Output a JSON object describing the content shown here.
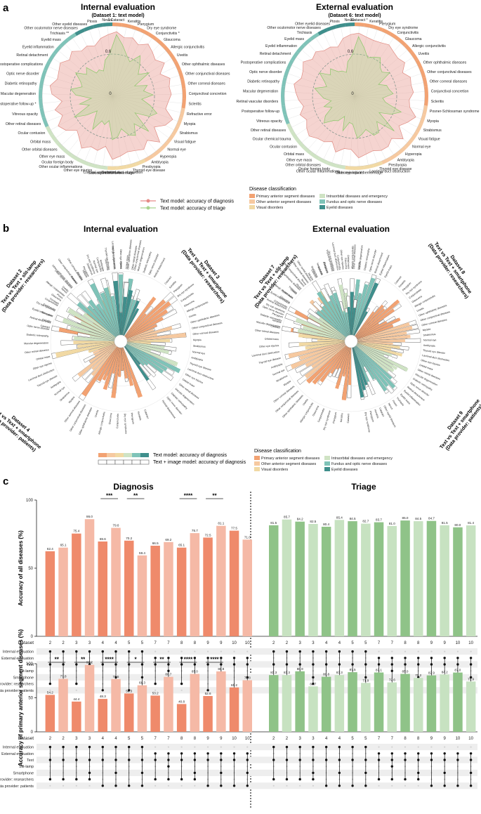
{
  "panels": {
    "a": "a",
    "b": "b",
    "c": "c"
  },
  "panel_a": {
    "internal": {
      "title": "Internal evaluation",
      "subtitle": "(Dataset 1: text model)"
    },
    "external": {
      "title": "External evaluation",
      "subtitle": "(Dataset 6: text model)"
    },
    "legend": {
      "diagnosis": "Text model: accuracy of diagnosis",
      "triage": "Text model: accuracy of triage"
    },
    "radial_ticks": [
      "0",
      "0.6",
      "1"
    ]
  },
  "disease_classification": {
    "title": "Disease classification",
    "items": [
      {
        "label": "Primary anterior segment diseases",
        "color": "#f2a272"
      },
      {
        "label": "Other anterior segment diseases",
        "color": "#f6c9a0"
      },
      {
        "label": "Visual disorders",
        "color": "#f1d9a4"
      },
      {
        "label": "Intraorbital diseases and emergency",
        "color": "#cfe3c4"
      },
      {
        "label": "Fundus and optic nerve diseases",
        "color": "#7fc3b8"
      },
      {
        "label": "Eyelid diseases",
        "color": "#3f8f8c"
      }
    ]
  },
  "panel_b": {
    "internal_title": "Internal evaluation",
    "external_title": "External evaluation",
    "ds2": "Dataset 2",
    "ds2_cmp": "Text vs Text + slit-lamp",
    "ds2_prov": "(Data provider: researchers)",
    "ds3": "Dataset 3",
    "ds3_cmp": "Text vs Text + smartphone",
    "ds3_prov": "(Data provider: researchers)",
    "ds4": "Dataset 4",
    "ds4_cmp": "Text vs Text + smartphone",
    "ds4_prov": "(Data provider: patients)",
    "ds7": "Dataset 7",
    "ds7_cmp": "Text vs Text + slit-lamp",
    "ds7_prov": "(Data provider: researchers)",
    "ds8": "Dataset 8",
    "ds8_cmp": "Text vs Text + smartphone",
    "ds8_prov": "(Data provider: researchers)",
    "ds9": "Dataset 9",
    "ds9_cmp": "Text vs Text + smartphone",
    "ds9_prov": "(Data provider: patients)",
    "legend_text": "Text model: accuracy of diagnosis",
    "legend_image": "Text + image model: accuracy of diagnosis"
  },
  "chart_data": [
    {
      "type": "radar",
      "title": "Internal evaluation",
      "subtitle": "(Dataset 1: text model)",
      "rlim": [
        0,
        1
      ],
      "categories": [
        "Cataract",
        "Keratitis",
        "Pterygium",
        "Dry eye syndrome",
        "Conjunctivitis *",
        "Glaucoma",
        "Allergic conjunctivitis",
        "Uveitis",
        "Other ophthalmic diseases",
        "Other conjunctival diseases",
        "Other corneal diseases",
        "Conjunctival concretion",
        "Scleritis",
        "Refractive error",
        "Myopia",
        "Strabismus",
        "Visual fatigue",
        "Normal eye",
        "Hyperopia",
        "Amblyopia",
        "Presbyopia",
        "Thyroid eye disease",
        "Lacrimal duct obstruction",
        "Subconjunctival hemorrhage *",
        "Corneal epithelial injury",
        "Other eye injuries",
        "Other ocular inflammations",
        "Ocular foreign body",
        "Other eye mass",
        "Other orbital diseases",
        "Orbital mass",
        "Ocular contusion",
        "Other retinal diseases",
        "Vitreous opacity",
        "Postoperative follow-up *",
        "Macular degeneration",
        "Diabetic retinopathy",
        "Optic nerve disorder",
        "Postoperative complications",
        "Retinal detachment",
        "Eyelid inflammation",
        "Eyelid mass",
        "Trichiasis **",
        "Other oculomotor nerve diseases",
        "Other eyelid diseases",
        "Ptosis",
        "Nevus"
      ],
      "series": [
        {
          "name": "Text model: accuracy of diagnosis",
          "values": [
            0.88,
            0.74,
            0.62,
            0.55,
            0.7,
            0.58,
            0.48,
            0.62,
            0.35,
            0.52,
            0.45,
            0.58,
            0.42,
            0.55,
            0.68,
            0.6,
            0.4,
            0.72,
            0.5,
            0.65,
            0.6,
            0.48,
            0.58,
            0.62,
            0.35,
            0.42,
            0.38,
            0.55,
            0.4,
            0.3,
            0.45,
            0.62,
            0.35,
            0.48,
            0.3,
            0.52,
            0.6,
            0.45,
            0.5,
            0.62,
            0.48,
            0.55,
            0.4,
            0.42,
            0.38,
            0.52,
            0.6
          ]
        },
        {
          "name": "Text model: accuracy of triage",
          "values": [
            0.92,
            0.85,
            0.88,
            0.82,
            0.9,
            0.85,
            0.8,
            0.88,
            0.75,
            0.86,
            0.82,
            0.84,
            0.8,
            0.78,
            0.92,
            0.86,
            0.74,
            0.94,
            0.8,
            0.88,
            0.84,
            0.82,
            0.86,
            0.9,
            0.72,
            0.8,
            0.78,
            0.86,
            0.76,
            0.7,
            0.82,
            0.88,
            0.76,
            0.84,
            0.72,
            0.86,
            0.9,
            0.82,
            0.84,
            0.88,
            0.8,
            0.86,
            0.78,
            0.8,
            0.76,
            0.84,
            0.88
          ]
        }
      ]
    },
    {
      "type": "radar",
      "title": "External evaluation",
      "subtitle": "(Dataset 6: text model)",
      "rlim": [
        0,
        1
      ],
      "categories": [
        "Cataract *",
        "Keratitis",
        "Pterygium",
        "Dry eye syndrome",
        "Conjunctivitis",
        "Glaucoma",
        "Allergic conjunctivitis",
        "Uveitis",
        "Other ophthalmic diseases",
        "Other conjunctival diseases",
        "Other corneal diseases",
        "Conjunctival concretion",
        "Scleritis",
        "Posner-Schlossman syndrome",
        "Myopia",
        "Strabismus",
        "Visual fatigue",
        "Normal eye",
        "Hyperopia",
        "Amblyopia",
        "Presbyopia",
        "Thyroid eye disease",
        "Lacrimal duct obstruction",
        "Subconjunctival hemorrhage",
        "Other eye injuries",
        "Other ocular inflammations",
        "Ocular foreign body",
        "Other orbital diseases",
        "Other eye mass",
        "Orbital mass",
        "Ocular contusion",
        "Ocular chemical trauma",
        "Other retinal diseases",
        "Vitreous opacity",
        "Postoperative follow-up",
        "Retinal vascular disorders",
        "Macular degeneration",
        "Diabetic retinopathy",
        "Optic nerve disorder",
        "Postoperative complications",
        "Retinal detachment",
        "Eyelid inflammation",
        "Eyelid mass",
        "Trichiasis",
        "Other oculomotor nerve diseases",
        "Other eyelid diseases",
        "Ptosis",
        "Nevus"
      ],
      "series": [
        {
          "name": "Text model: accuracy of diagnosis",
          "values": [
            0.85,
            0.7,
            0.58,
            0.62,
            0.66,
            0.55,
            0.52,
            0.6,
            0.38,
            0.48,
            0.5,
            0.55,
            0.4,
            0.45,
            0.7,
            0.58,
            0.42,
            0.75,
            0.48,
            0.62,
            0.62,
            0.5,
            0.55,
            0.6,
            0.4,
            0.38,
            0.52,
            0.32,
            0.42,
            0.46,
            0.58,
            0.5,
            0.36,
            0.46,
            0.34,
            0.44,
            0.5,
            0.58,
            0.42,
            0.48,
            0.6,
            0.46,
            0.52,
            0.42,
            0.4,
            0.36,
            0.5,
            0.58
          ]
        },
        {
          "name": "Text model: accuracy of triage",
          "values": [
            0.9,
            0.86,
            0.84,
            0.85,
            0.88,
            0.84,
            0.82,
            0.86,
            0.76,
            0.84,
            0.82,
            0.84,
            0.78,
            0.8,
            0.92,
            0.84,
            0.76,
            0.92,
            0.8,
            0.86,
            0.86,
            0.82,
            0.84,
            0.88,
            0.76,
            0.76,
            0.84,
            0.72,
            0.78,
            0.8,
            0.86,
            0.82,
            0.76,
            0.82,
            0.74,
            0.8,
            0.84,
            0.88,
            0.8,
            0.82,
            0.88,
            0.8,
            0.84,
            0.78,
            0.78,
            0.74,
            0.84,
            0.88
          ]
        }
      ]
    },
    {
      "type": "bar",
      "title": "Diagnosis",
      "ylabel": "Accuracy of all diseases (%)",
      "ylim": [
        0,
        100
      ],
      "yticks": [
        "0",
        "50",
        "100"
      ],
      "xlabel": "Dataset",
      "categories": [
        "2",
        "2",
        "3",
        "3",
        "4",
        "4",
        "5",
        "5",
        "7",
        "7",
        "8",
        "8",
        "9",
        "9",
        "10",
        "10"
      ],
      "values": [
        62.4,
        65.1,
        75.4,
        86.0,
        69.6,
        79.6,
        70.2,
        59.4,
        66.5,
        69.2,
        65.1,
        75.7,
        72.5,
        81.1,
        77.5,
        71.0
      ],
      "labels": [
        "62.4",
        "65.1",
        "75.4",
        "86.0",
        "69.6",
        "79.6",
        "70.2",
        "59.4",
        "66.5",
        "69.2",
        "65.1",
        "75.7",
        "72.5",
        "81.1",
        "77.5",
        "71.0"
      ],
      "significance": [
        "***",
        "**",
        "****",
        "**"
      ]
    },
    {
      "type": "bar",
      "title": "Triage",
      "categories": [
        "2",
        "2",
        "3",
        "3",
        "4",
        "4",
        "5",
        "5",
        "7",
        "7",
        "8",
        "8",
        "9",
        "9",
        "10",
        "10"
      ],
      "values": [
        81.5,
        85.7,
        84.2,
        82.5,
        80.4,
        85.4,
        84.5,
        82.7,
        83.7,
        81.0,
        85.0,
        84.5,
        84.7,
        81.5,
        80.0,
        81.4
      ],
      "labels": [
        "81.5",
        "85.7",
        "84.2",
        "82.5",
        "80.4",
        "85.4",
        "84.5",
        "82.7",
        "83.7",
        "81.0",
        "85.0",
        "84.5",
        "84.7",
        "81.5",
        "80.0",
        "81.4"
      ]
    },
    {
      "type": "bar",
      "title": "Diagnosis",
      "ylabel": "Accuracy of primary anterior segment diseases (%)",
      "ylim": [
        0,
        100
      ],
      "yticks": [
        "0",
        "50",
        "100"
      ],
      "xlabel": "Dataset",
      "categories": [
        "2",
        "2",
        "3",
        "3",
        "4",
        "4",
        "5",
        "5",
        "7",
        "7",
        "8",
        "8",
        "9",
        "9",
        "10",
        "10"
      ],
      "values": [
        54.2,
        77.8,
        44.4,
        98.2,
        48.3,
        77.5,
        56.3,
        68.3,
        53.2,
        80.7,
        40.8,
        85.0,
        52.6,
        88.8,
        65.2,
        75.8
      ],
      "labels": [
        "54.2",
        "77.8",
        "44.4",
        "98.2",
        "48.3",
        "77.5",
        "56.3",
        "68.3",
        "53.2",
        "80.7",
        "40.8",
        "85.0",
        "52.6",
        "88.8",
        "65.2",
        "75.8"
      ],
      "significance": [
        "**",
        "**",
        "****",
        "*",
        "**",
        "****",
        "****"
      ]
    },
    {
      "type": "bar",
      "title": "Triage",
      "categories": [
        "2",
        "2",
        "3",
        "3",
        "4",
        "4",
        "5",
        "5",
        "7",
        "7",
        "8",
        "8",
        "9",
        "9",
        "10",
        "10"
      ],
      "values": [
        83.3,
        83.3,
        88.9,
        66.7,
        80.8,
        83.3,
        87.5,
        71.9,
        87.1,
        72.6,
        85.0,
        79.2,
        82.9,
        84.2,
        87.0,
        73.9
      ],
      "labels": [
        "83.3",
        "83.3",
        "88.9",
        "66.7",
        "80.8",
        "83.3",
        "87.5",
        "71.9",
        "87.1",
        "72.6",
        "85.0",
        "79.2",
        "82.9",
        "84.2",
        "87.0",
        "73.9"
      ]
    }
  ],
  "matrix": {
    "rows": [
      "Internal evaluation",
      "External evaluation",
      "Text",
      "Slit-lamp",
      "Smartphone",
      "Data provider: researchers",
      "Data provider: patients"
    ]
  }
}
